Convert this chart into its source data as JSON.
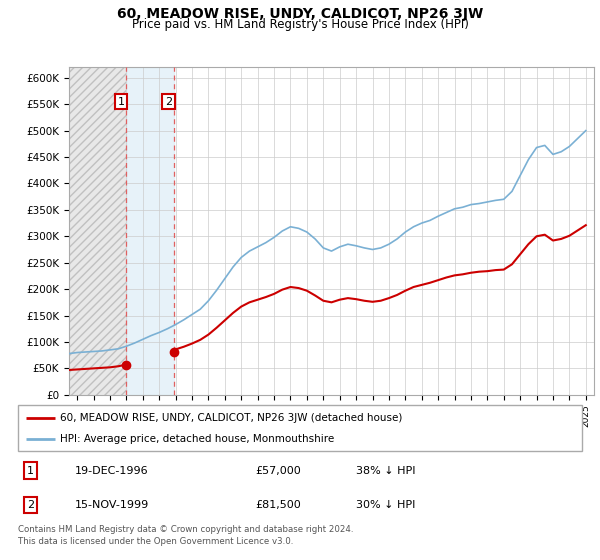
{
  "title": "60, MEADOW RISE, UNDY, CALDICOT, NP26 3JW",
  "subtitle": "Price paid vs. HM Land Registry's House Price Index (HPI)",
  "ylim": [
    0,
    620000
  ],
  "yticks": [
    0,
    50000,
    100000,
    150000,
    200000,
    250000,
    300000,
    350000,
    400000,
    450000,
    500000,
    550000,
    600000
  ],
  "xlim_start": 1993.5,
  "xlim_end": 2025.5,
  "sale1_date": 1996.96,
  "sale1_price": 57000,
  "sale2_date": 1999.88,
  "sale2_price": 81500,
  "house_color": "#cc0000",
  "hpi_color": "#7ab0d4",
  "grid_color": "#cccccc",
  "legend_label1": "60, MEADOW RISE, UNDY, CALDICOT, NP26 3JW (detached house)",
  "legend_label2": "HPI: Average price, detached house, Monmouthshire",
  "annotation1_date": "19-DEC-1996",
  "annotation1_price": "£57,000",
  "annotation1_hpi": "38% ↓ HPI",
  "annotation2_date": "15-NOV-1999",
  "annotation2_price": "£81,500",
  "annotation2_hpi": "30% ↓ HPI",
  "footer": "Contains HM Land Registry data © Crown copyright and database right 2024.\nThis data is licensed under the Open Government Licence v3.0.",
  "hpi_years": [
    1993.5,
    1994.0,
    1994.5,
    1995.0,
    1995.5,
    1996.0,
    1996.5,
    1997.0,
    1997.5,
    1998.0,
    1998.5,
    1999.0,
    1999.5,
    2000.0,
    2000.5,
    2001.0,
    2001.5,
    2002.0,
    2002.5,
    2003.0,
    2003.5,
    2004.0,
    2004.5,
    2005.0,
    2005.5,
    2006.0,
    2006.5,
    2007.0,
    2007.5,
    2008.0,
    2008.5,
    2009.0,
    2009.5,
    2010.0,
    2010.5,
    2011.0,
    2011.5,
    2012.0,
    2012.5,
    2013.0,
    2013.5,
    2014.0,
    2014.5,
    2015.0,
    2015.5,
    2016.0,
    2016.5,
    2017.0,
    2017.5,
    2018.0,
    2018.5,
    2019.0,
    2019.5,
    2020.0,
    2020.5,
    2021.0,
    2021.5,
    2022.0,
    2022.5,
    2023.0,
    2023.5,
    2024.0,
    2024.5,
    2025.0
  ],
  "hpi_vals": [
    78000,
    80000,
    81000,
    82000,
    83000,
    85000,
    87000,
    92000,
    98000,
    105000,
    112000,
    118000,
    125000,
    133000,
    142000,
    152000,
    162000,
    178000,
    198000,
    220000,
    242000,
    260000,
    272000,
    280000,
    288000,
    298000,
    310000,
    318000,
    315000,
    308000,
    295000,
    278000,
    272000,
    280000,
    285000,
    282000,
    278000,
    275000,
    278000,
    285000,
    295000,
    308000,
    318000,
    325000,
    330000,
    338000,
    345000,
    352000,
    355000,
    360000,
    362000,
    365000,
    368000,
    370000,
    385000,
    415000,
    445000,
    468000,
    472000,
    455000,
    460000,
    470000,
    485000,
    500000
  ],
  "house_years_seg1": [
    1993.5,
    1994.0,
    1994.5,
    1995.0,
    1995.5,
    1996.0,
    1996.5,
    1996.96
  ],
  "house_vals_seg1": [
    47000,
    48000,
    49000,
    50000,
    51000,
    52000,
    54000,
    57000
  ],
  "house_years_seg2": [
    1999.88,
    2000.0,
    2000.5,
    2001.0,
    2001.5,
    2002.0,
    2002.5,
    2003.0,
    2003.5,
    2004.0,
    2004.5,
    2005.0,
    2005.5,
    2006.0,
    2006.5,
    2007.0,
    2007.5,
    2008.0,
    2008.5,
    2009.0,
    2009.5,
    2010.0,
    2010.5,
    2011.0,
    2011.5,
    2012.0,
    2012.5,
    2013.0,
    2013.5,
    2014.0,
    2014.5,
    2015.0,
    2015.5,
    2016.0,
    2016.5,
    2017.0,
    2017.5,
    2018.0,
    2018.5,
    2019.0,
    2019.5,
    2020.0,
    2020.5,
    2021.0,
    2021.5,
    2022.0,
    2022.5,
    2023.0,
    2023.5,
    2024.0,
    2024.5,
    2025.0
  ],
  "house_vals_seg2": [
    81500,
    86000,
    91000,
    97000,
    104000,
    114000,
    127000,
    141000,
    155000,
    167000,
    175000,
    180000,
    185000,
    191000,
    199000,
    204000,
    202000,
    197000,
    188000,
    178000,
    175000,
    180000,
    183000,
    181000,
    178000,
    176000,
    178000,
    183000,
    189000,
    197000,
    204000,
    208000,
    212000,
    217000,
    222000,
    226000,
    228000,
    231000,
    233000,
    234000,
    236000,
    237000,
    247000,
    266000,
    285000,
    300000,
    303000,
    292000,
    295000,
    301000,
    311000,
    321000
  ]
}
